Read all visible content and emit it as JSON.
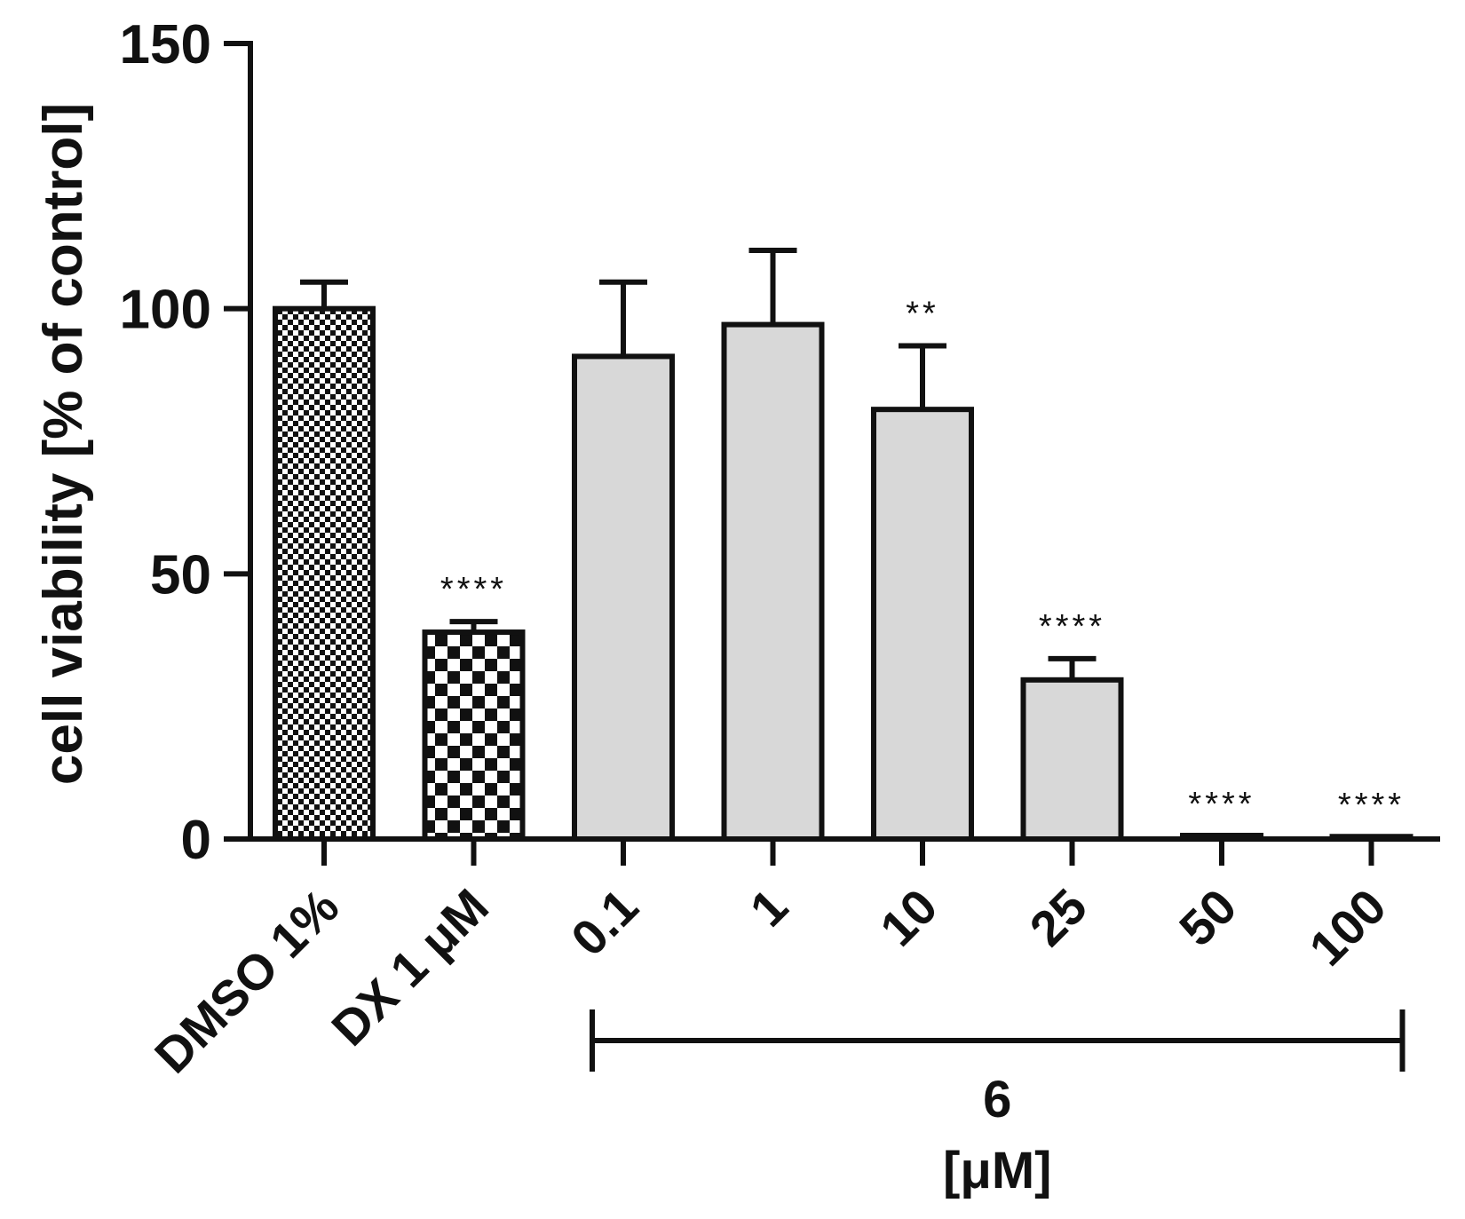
{
  "chart_data": {
    "type": "bar",
    "ylabel": "cell viability [% of control]",
    "ylim": [
      0,
      150
    ],
    "yticks": [
      0,
      50,
      100,
      150
    ],
    "categories": [
      "DMSO 1%",
      "DX 1 μM",
      "0.1",
      "1",
      "10",
      "25",
      "50",
      "100"
    ],
    "values": [
      100,
      39,
      91,
      97,
      81,
      30,
      0.5,
      0.3
    ],
    "errors": [
      5,
      2,
      14,
      14,
      12,
      4,
      0,
      0
    ],
    "significance": [
      "",
      "****",
      "",
      "",
      "**",
      "****",
      "****",
      "****"
    ],
    "fills": [
      "fine-checker",
      "coarse-checker",
      "solid",
      "solid",
      "solid",
      "solid",
      "solid",
      "solid"
    ],
    "group": {
      "label": "6",
      "unit": "[μM]",
      "start_index": 2,
      "end_index": 7
    },
    "colors": {
      "bar_fill": "#d8d8d8",
      "stroke": "#111111",
      "background": "#ffffff"
    },
    "grid": false
  }
}
